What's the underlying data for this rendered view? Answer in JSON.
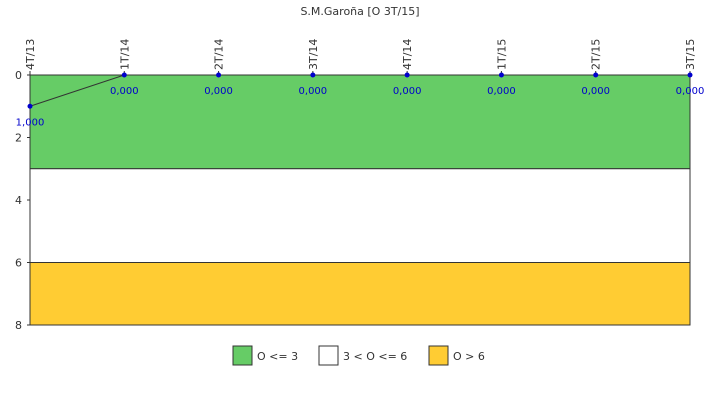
{
  "chart_data": {
    "type": "line",
    "title": "S.M.Garoña [O 3T/15]",
    "xlabel": "",
    "ylabel": "",
    "categories": [
      "4T/13",
      "1T/14",
      "2T/14",
      "3T/14",
      "4T/14",
      "1T/15",
      "2T/15",
      "3T/15"
    ],
    "series": [
      {
        "values": [
          1,
          0,
          0,
          0,
          0,
          0,
          0,
          0
        ],
        "color": "#0000cc"
      }
    ],
    "data_labels": [
      "1,000",
      "0,000",
      "0,000",
      "0,000",
      "0,000",
      "0,000",
      "0,000",
      "0,000"
    ],
    "ylim": [
      0,
      8
    ],
    "y_inverted": true,
    "yticks": [
      0,
      2,
      4,
      6,
      8
    ],
    "x_axis_position": "top",
    "bands": [
      {
        "from": 0,
        "to": 3,
        "color": "#66cc66",
        "label": "O <= 3"
      },
      {
        "from": 3,
        "to": 6,
        "color": "#ffffff",
        "label": "3 < O <= 6"
      },
      {
        "from": 6,
        "to": 8,
        "color": "#ffcc33",
        "label": "O > 6"
      }
    ],
    "legend_position": "bottom",
    "grid": false
  }
}
